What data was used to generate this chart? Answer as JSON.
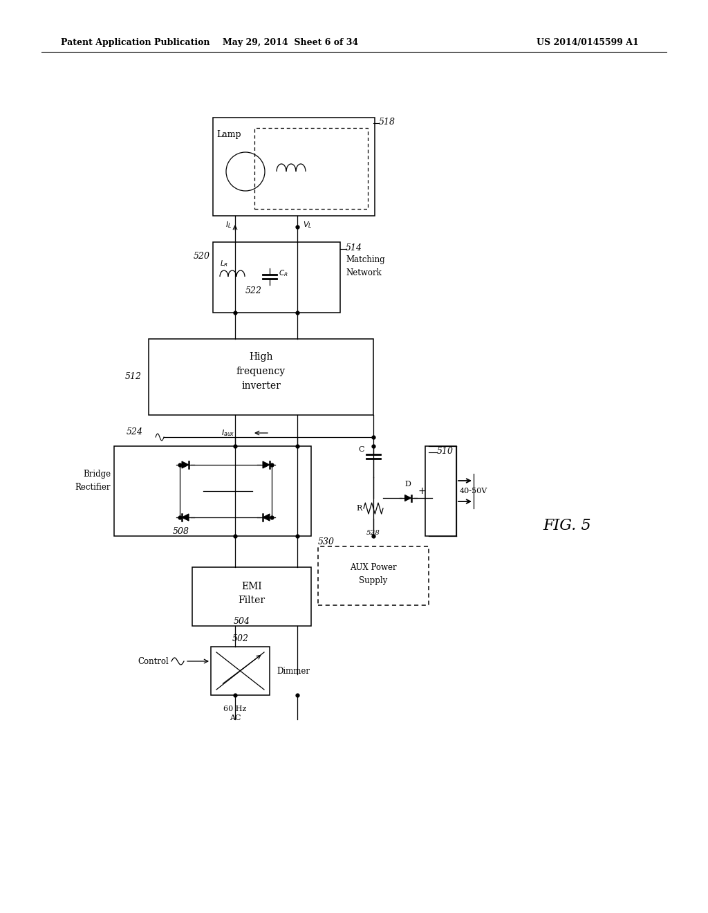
{
  "bg_color": "#ffffff",
  "header_left": "Patent Application Publication",
  "header_mid": "May 29, 2014  Sheet 6 of 34",
  "header_right": "US 2014/0145599 A1",
  "fig_label": "FIG. 5"
}
